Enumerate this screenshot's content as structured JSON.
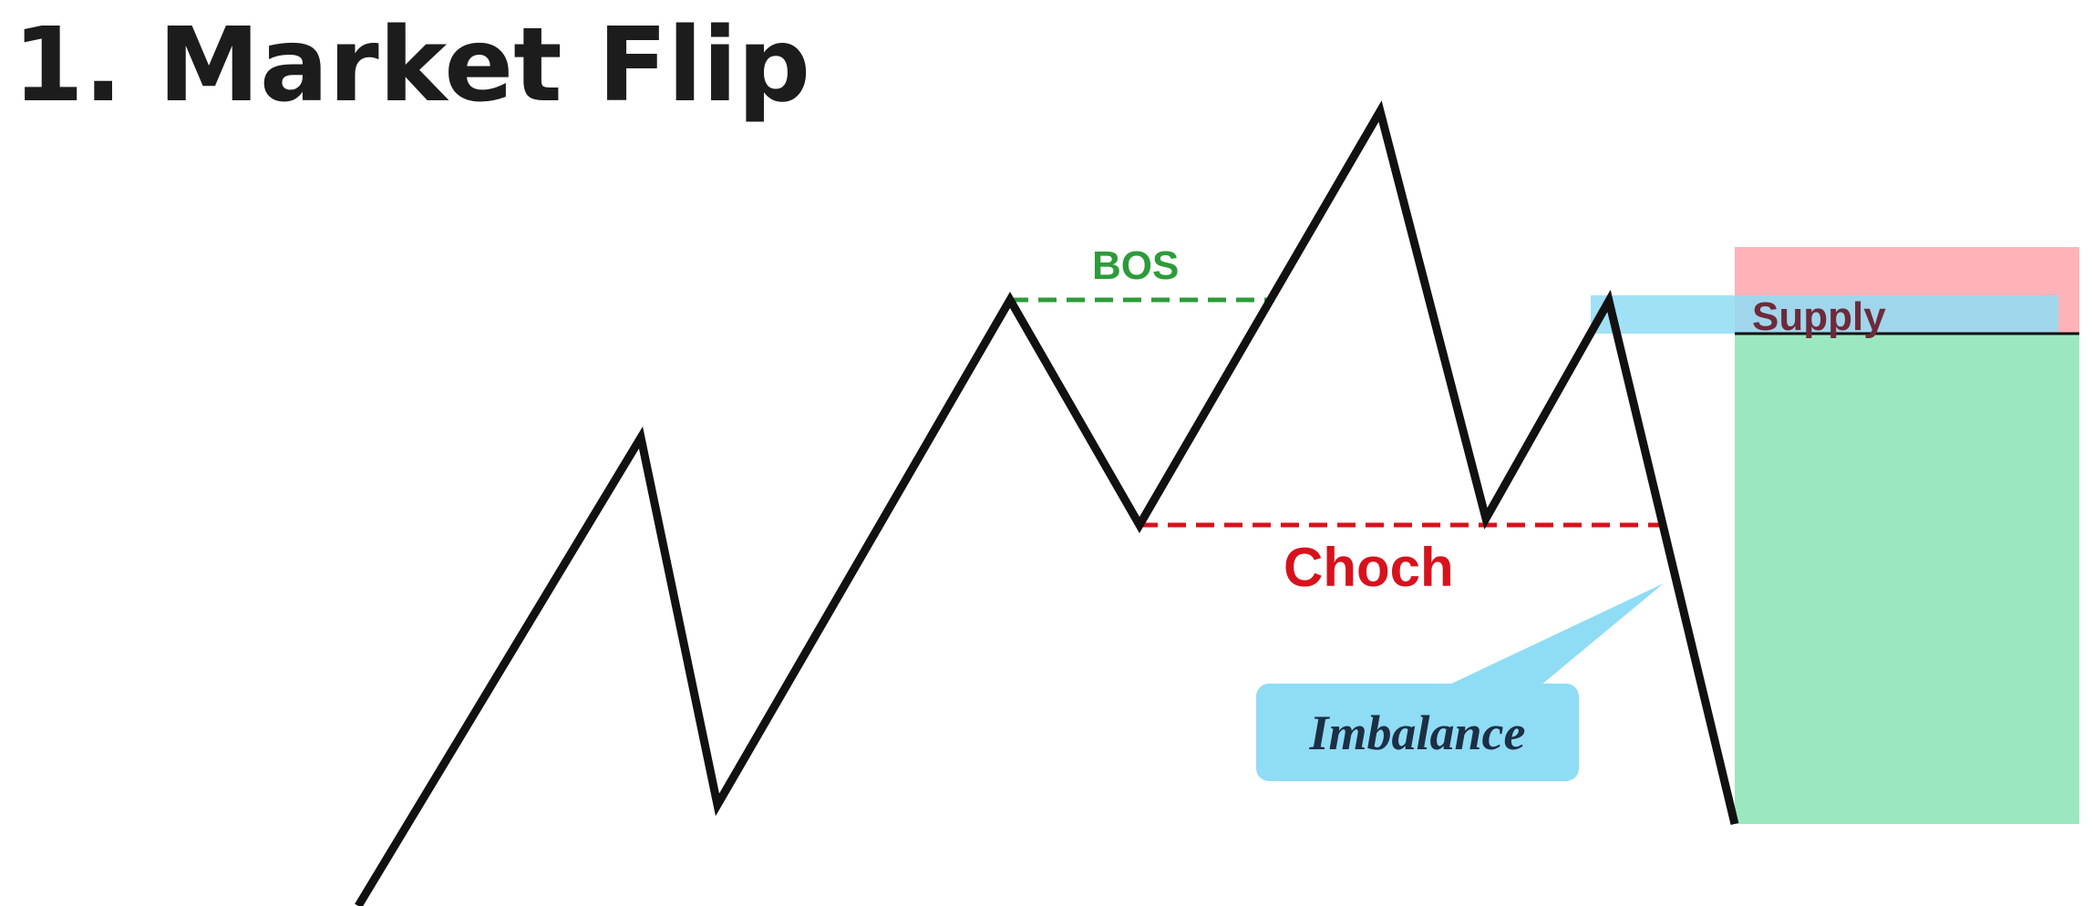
{
  "title": "1. Market Flip",
  "labels": {
    "bos": "BOS",
    "choch": "Choch",
    "supply": "Supply",
    "imbalance": "Imbalance"
  },
  "colors": {
    "price_line": "#111111",
    "bos": "#2e9b3a",
    "choch": "#d7121c",
    "supply_zone": "#ffb3b8",
    "demand_zone": "#9be8c0",
    "imbalance": "#8fdcf5",
    "supply_text": "#6e2a3a",
    "imbalance_text": "#1c2f44"
  }
}
